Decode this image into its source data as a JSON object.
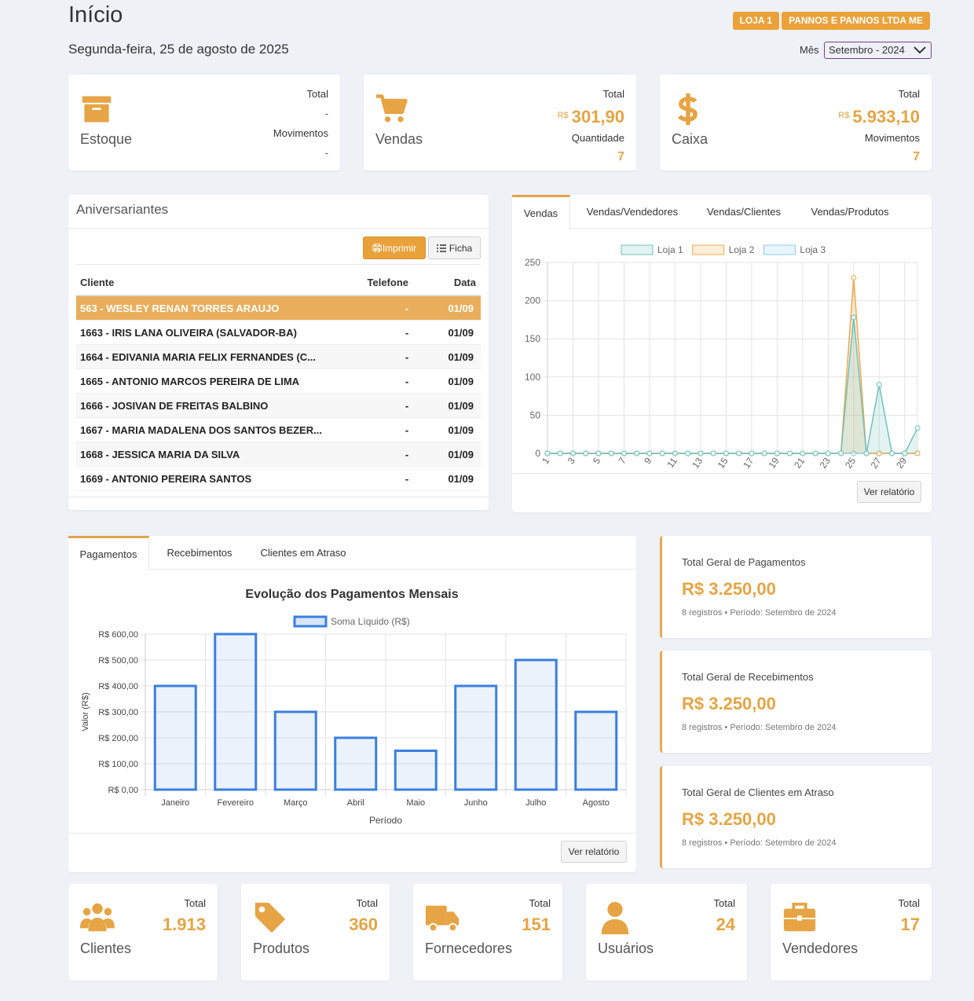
{
  "header": {
    "title": "Início",
    "date": "Segunda-feira, 25 de agosto de 2025",
    "badges": [
      "LOJA 1",
      "PANNOS E PANNOS LTDA ME"
    ],
    "month_label": "Mês",
    "month": "Setembro - 2024"
  },
  "top_cards": [
    {
      "label": "Estoque",
      "stats": [
        {
          "label": "Total",
          "value": "-"
        },
        {
          "label": "Movimentos",
          "value": "-"
        }
      ]
    },
    {
      "label": "Vendas",
      "stats": [
        {
          "label": "Total",
          "currency": "R$",
          "value": "301,90"
        },
        {
          "label": "Quantidade",
          "value": "7"
        }
      ]
    },
    {
      "label": "Caixa",
      "stats": [
        {
          "label": "Total",
          "currency": "R$",
          "value": "5.933,10"
        },
        {
          "label": "Movimentos",
          "value": "7"
        }
      ]
    }
  ],
  "birthdays": {
    "title": "Aniversariantes",
    "buttons": [
      "Imprimir",
      "Ficha"
    ],
    "columns": [
      "Cliente",
      "Telefone",
      "Data"
    ],
    "selected_row": 0,
    "rows": [
      [
        "563 - WESLEY RENAN TORRES ARAUJO",
        "-",
        "01/09"
      ],
      [
        "1663 - IRIS LANA OLIVEIRA (SALVADOR-BA)",
        "-",
        "01/09"
      ],
      [
        "1664 - EDIVANIA MARIA FELIX FERNANDES (C...",
        "-",
        "01/09"
      ],
      [
        "1665 - ANTONIO MARCOS PEREIRA DE LIMA",
        "-",
        "01/09"
      ],
      [
        "1666 - JOSIVAN DE FREITAS BALBINO",
        "-",
        "01/09"
      ],
      [
        "1667 - MARIA MADALENA DOS SANTOS BEZER...",
        "-",
        "01/09"
      ],
      [
        "1668 - JESSICA MARIA DA SILVA",
        "-",
        "01/09"
      ],
      [
        "1669 - ANTONIO PEREIRA SANTOS",
        "-",
        "01/09"
      ]
    ]
  },
  "sales_panel": {
    "tabs": [
      "Vendas",
      "Vendas/Vendedores",
      "Vendas/Clientes",
      "Vendas/Produtos"
    ],
    "button": "Ver relatório"
  },
  "payments_panel": {
    "tabs": [
      "Pagamentos",
      "Recebimentos",
      "Clientes em Atraso"
    ],
    "button": "Ver relatório"
  },
  "summary_cards": [
    {
      "title": "Total Geral de Pagamentos",
      "value": "R$ 3.250,00",
      "note": "8 registros • Período: Setembro de 2024"
    },
    {
      "title": "Total Geral de Recebimentos",
      "value": "R$ 3.250,00",
      "note": "8 registros • Período: Setembro de 2024"
    },
    {
      "title": "Total Geral de Clientes em Atraso",
      "value": "R$ 3.250,00",
      "note": "8 registros • Período: Setembro de 2024"
    }
  ],
  "bottom_cards": [
    {
      "label": "Clientes",
      "stat_label": "Total",
      "value": "1.913"
    },
    {
      "label": "Produtos",
      "stat_label": "Total",
      "value": "360"
    },
    {
      "label": "Fornecedores",
      "stat_label": "Total",
      "value": "151"
    },
    {
      "label": "Usuários",
      "stat_label": "Total",
      "value": "24"
    },
    {
      "label": "Vendedores",
      "stat_label": "Total",
      "value": "17"
    }
  ],
  "chart_data": [
    {
      "type": "line",
      "x": [
        1,
        2,
        3,
        4,
        5,
        6,
        7,
        8,
        9,
        10,
        11,
        12,
        13,
        14,
        15,
        16,
        17,
        18,
        19,
        20,
        21,
        22,
        23,
        24,
        25,
        26,
        27,
        28,
        29,
        30
      ],
      "xlim": [
        1,
        30
      ],
      "xticks": [
        1,
        3,
        5,
        7,
        9,
        11,
        13,
        15,
        17,
        19,
        21,
        23,
        25,
        27,
        29
      ],
      "ylim": [
        0,
        250
      ],
      "yticks": [
        0,
        50,
        100,
        150,
        200,
        250
      ],
      "grid": true,
      "legend": "top",
      "series": [
        {
          "name": "Loja 1",
          "color": "#6fc2bf",
          "values": [
            0,
            0,
            0,
            0,
            0,
            0,
            0,
            0,
            0,
            0,
            0,
            0,
            0,
            0,
            0,
            0,
            0,
            0,
            0,
            0,
            0,
            0,
            0,
            0,
            178,
            0,
            90,
            0,
            0,
            33
          ]
        },
        {
          "name": "Loja 2",
          "color": "#f0a94c",
          "values": [
            0,
            0,
            0,
            0,
            0,
            0,
            0,
            0,
            0,
            0,
            0,
            0,
            0,
            0,
            0,
            0,
            0,
            0,
            0,
            0,
            0,
            0,
            0,
            0,
            230,
            0,
            0,
            0,
            0,
            0
          ]
        },
        {
          "name": "Loja 3",
          "color": "#8ccbf0",
          "values": [
            0,
            0,
            0,
            0,
            0,
            0,
            0,
            0,
            0,
            0,
            0,
            0,
            0,
            0,
            0,
            0,
            0,
            0,
            0,
            0,
            0,
            0,
            0,
            0,
            0,
            0,
            0,
            0,
            0,
            0
          ]
        }
      ]
    },
    {
      "type": "bar",
      "title": "Evolução dos Pagamentos Mensais",
      "categories": [
        "Janeiro",
        "Fevereiro",
        "Março",
        "Abril",
        "Maio",
        "Junho",
        "Julho",
        "Agosto"
      ],
      "series": [
        {
          "name": "Soma Líquido (R$)",
          "color": "#3a7fe0",
          "values": [
            400,
            600,
            300,
            200,
            150,
            400,
            500,
            300
          ]
        }
      ],
      "ylim": [
        0,
        600
      ],
      "yticks": [
        {
          "value": 0,
          "label": "R$ 0,00"
        },
        {
          "value": 100,
          "label": "R$ 100,00"
        },
        {
          "value": 200,
          "label": "R$ 200,00"
        },
        {
          "value": 300,
          "label": "R$ 300,00"
        },
        {
          "value": 400,
          "label": "R$ 400,00"
        },
        {
          "value": 500,
          "label": "R$ 500,00"
        },
        {
          "value": 600,
          "label": "R$ 600,00"
        }
      ],
      "xlabel": "Período",
      "ylabel": "Valor (R$)",
      "grid": true,
      "legend": "top"
    }
  ]
}
